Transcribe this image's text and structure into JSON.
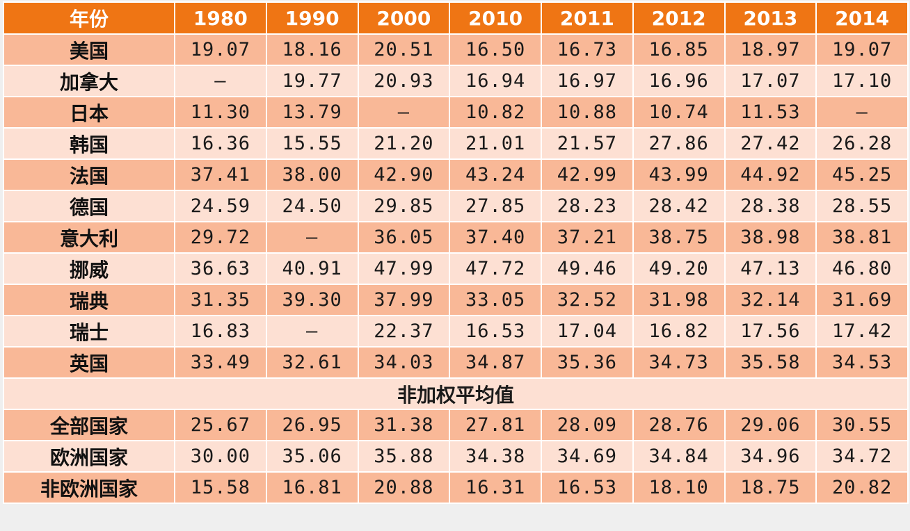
{
  "table": {
    "header": [
      "年份",
      "1980",
      "1990",
      "2000",
      "2010",
      "2011",
      "2012",
      "2013",
      "2014"
    ],
    "country_rows": [
      {
        "name": "美国",
        "values": [
          "19.07",
          "18.16",
          "20.51",
          "16.50",
          "16.73",
          "16.85",
          "18.97",
          "19.07"
        ]
      },
      {
        "name": "加拿大",
        "values": [
          "—",
          "19.77",
          "20.93",
          "16.94",
          "16.97",
          "16.96",
          "17.07",
          "17.10"
        ]
      },
      {
        "name": "日本",
        "values": [
          "11.30",
          "13.79",
          "—",
          "10.82",
          "10.88",
          "10.74",
          "11.53",
          "—"
        ]
      },
      {
        "name": "韩国",
        "values": [
          "16.36",
          "15.55",
          "21.20",
          "21.01",
          "21.57",
          "27.86",
          "27.42",
          "26.28"
        ]
      },
      {
        "name": "法国",
        "values": [
          "37.41",
          "38.00",
          "42.90",
          "43.24",
          "42.99",
          "43.99",
          "44.92",
          "45.25"
        ]
      },
      {
        "name": "德国",
        "values": [
          "24.59",
          "24.50",
          "29.85",
          "27.85",
          "28.23",
          "28.42",
          "28.38",
          "28.55"
        ]
      },
      {
        "name": "意大利",
        "values": [
          "29.72",
          "—",
          "36.05",
          "37.40",
          "37.21",
          "38.75",
          "38.98",
          "38.81"
        ]
      },
      {
        "name": "挪威",
        "values": [
          "36.63",
          "40.91",
          "47.99",
          "47.72",
          "49.46",
          "49.20",
          "47.13",
          "46.80"
        ]
      },
      {
        "name": "瑞典",
        "values": [
          "31.35",
          "39.30",
          "37.99",
          "33.05",
          "32.52",
          "31.98",
          "32.14",
          "31.69"
        ]
      },
      {
        "name": "瑞士",
        "values": [
          "16.83",
          "—",
          "22.37",
          "16.53",
          "17.04",
          "16.82",
          "17.56",
          "17.42"
        ]
      },
      {
        "name": "英国",
        "values": [
          "33.49",
          "32.61",
          "34.03",
          "34.87",
          "35.36",
          "34.73",
          "35.58",
          "34.53"
        ]
      }
    ],
    "section_label": "非加权平均值",
    "average_rows": [
      {
        "name": "全部国家",
        "values": [
          "25.67",
          "26.95",
          "31.38",
          "27.81",
          "28.09",
          "28.76",
          "29.06",
          "30.55"
        ]
      },
      {
        "name": "欧洲国家",
        "values": [
          "30.00",
          "35.06",
          "35.88",
          "34.38",
          "34.69",
          "34.84",
          "34.96",
          "34.72"
        ]
      },
      {
        "name": "非欧洲国家",
        "values": [
          "15.58",
          "16.81",
          "20.88",
          "16.31",
          "16.53",
          "18.10",
          "18.75",
          "20.82"
        ]
      }
    ]
  }
}
